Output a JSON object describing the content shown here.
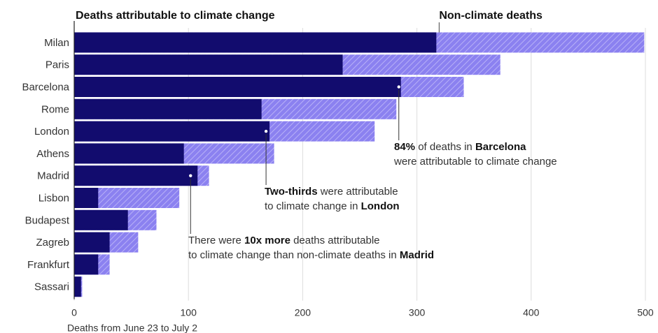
{
  "chart_data": {
    "type": "bar",
    "orientation": "horizontal",
    "stacked": true,
    "categories": [
      "Milan",
      "Paris",
      "Barcelona",
      "Rome",
      "London",
      "Athens",
      "Madrid",
      "Lisbon",
      "Budapest",
      "Zagreb",
      "Frankfurt",
      "Sassari"
    ],
    "series": [
      {
        "name": "Deaths attributable to climate change",
        "color": "#120c6e",
        "pattern": "solid",
        "values": [
          317,
          235,
          286,
          164,
          171,
          96,
          108,
          21,
          47,
          31,
          21,
          6
        ]
      },
      {
        "name": "Non-climate deaths",
        "color": "#8b81f0",
        "pattern": "hatched",
        "values": [
          182,
          138,
          55,
          118,
          92,
          79,
          10,
          71,
          25,
          25,
          10,
          1
        ]
      }
    ],
    "xlabel": "Deaths from June 23 to July 2",
    "xlim": [
      0,
      500
    ],
    "xticks": [
      "0",
      "100",
      "200",
      "300",
      "400",
      "500"
    ],
    "grid": "vertical",
    "legend_placement": "top",
    "annotations": [
      {
        "target": "Barcelona",
        "lines": [
          [
            {
              "text": "84%",
              "bold": true
            },
            {
              "text": " of deaths in ",
              "bold": false
            },
            {
              "text": "Barcelona",
              "bold": true
            }
          ],
          [
            {
              "text": "were attributable to climate change",
              "bold": false
            }
          ]
        ]
      },
      {
        "target": "London",
        "lines": [
          [
            {
              "text": "Two-thirds",
              "bold": true
            },
            {
              "text": " were attributable",
              "bold": false
            }
          ],
          [
            {
              "text": "to climate change in ",
              "bold": false
            },
            {
              "text": "London",
              "bold": true
            }
          ]
        ]
      },
      {
        "target": "Madrid",
        "lines": [
          [
            {
              "text": "There were ",
              "bold": false
            },
            {
              "text": "10x more",
              "bold": true
            },
            {
              "text": " deaths attributable",
              "bold": false
            }
          ],
          [
            {
              "text": "to climate change than non-climate deaths in ",
              "bold": false
            },
            {
              "text": "Madrid",
              "bold": true
            }
          ]
        ]
      }
    ]
  }
}
